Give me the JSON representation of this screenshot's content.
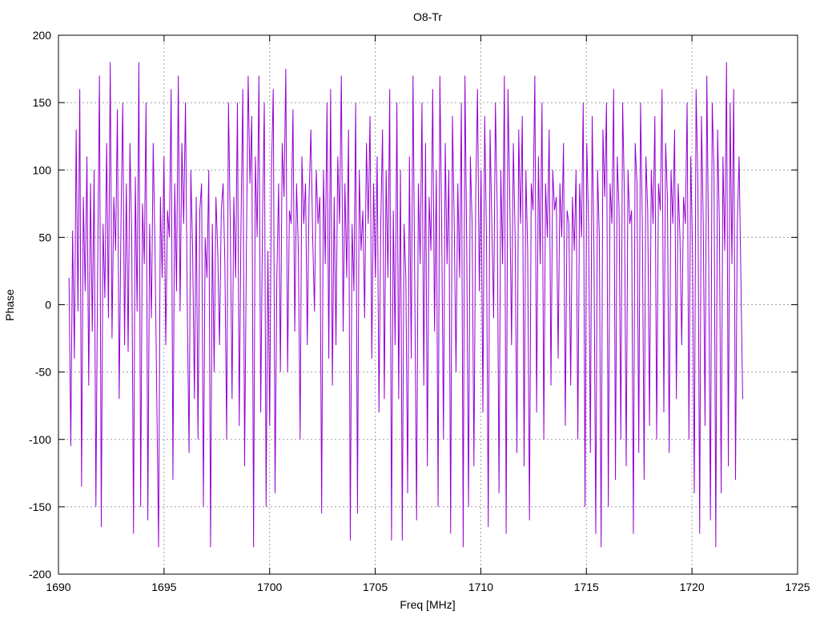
{
  "chart_data": {
    "type": "line",
    "title": "O8-Tr",
    "xlabel": "Freq [MHz]",
    "ylabel": "Phase",
    "xlim": [
      1690,
      1725
    ],
    "ylim": [
      -200,
      200
    ],
    "x_ticks": [
      1690,
      1695,
      1700,
      1705,
      1710,
      1715,
      1720,
      1725
    ],
    "y_ticks": [
      -200,
      -150,
      -100,
      -50,
      0,
      50,
      100,
      150,
      200
    ],
    "grid": true,
    "legend": "none",
    "series": [
      {
        "color": "#9400d3",
        "x_start": 1690.5,
        "x_end": 1722.4,
        "values": [
          20,
          -105,
          55,
          -40,
          130,
          -5,
          160,
          -135,
          80,
          10,
          110,
          -60,
          90,
          -20,
          100,
          -150,
          30,
          170,
          -165,
          60,
          5,
          120,
          -10,
          180,
          -25,
          80,
          40,
          145,
          -70,
          60,
          150,
          -30,
          90,
          -35,
          120,
          50,
          -170,
          95,
          -5,
          180,
          -150,
          75,
          30,
          150,
          -160,
          60,
          -10,
          120,
          40,
          -70,
          -180,
          80,
          20,
          110,
          -30,
          70,
          50,
          160,
          -130,
          90,
          10,
          170,
          -5,
          120,
          60,
          150,
          0,
          -110,
          100,
          40,
          -70,
          80,
          -100,
          70,
          90,
          -150,
          50,
          20,
          100,
          -180,
          60,
          -50,
          80,
          40,
          -30,
          70,
          90,
          30,
          -100,
          150,
          60,
          -70,
          80,
          20,
          150,
          -90,
          60,
          160,
          -120,
          40,
          170,
          90,
          140,
          -180,
          110,
          50,
          170,
          -80,
          60,
          150,
          -150,
          40,
          -90,
          100,
          160,
          -140,
          20,
          90,
          -50,
          120,
          80,
          175,
          -50,
          70,
          60,
          145,
          -20,
          90,
          40,
          -100,
          110,
          60,
          90,
          -30,
          80,
          130,
          50,
          -5,
          100,
          60,
          80,
          -155,
          100,
          30,
          150,
          -40,
          160,
          -60,
          80,
          -30,
          110,
          60,
          170,
          -20,
          90,
          20,
          130,
          -175,
          60,
          10,
          150,
          -155,
          100,
          40,
          70,
          -10,
          120,
          60,
          140,
          -40,
          90,
          20,
          110,
          -80,
          60,
          130,
          -70,
          100,
          20,
          160,
          -175,
          70,
          -30,
          150,
          -70,
          100,
          -175,
          60,
          20,
          -140,
          110,
          -40,
          170,
          10,
          -160,
          90,
          30,
          150,
          -60,
          120,
          -120,
          80,
          40,
          160,
          -20,
          100,
          -150,
          170,
          60,
          -100,
          120,
          30,
          100,
          -170,
          140,
          60,
          -50,
          90,
          20,
          150,
          -180,
          170,
          40,
          -150,
          110,
          60,
          -120,
          80,
          160,
          10,
          100,
          -80,
          140,
          50,
          -165,
          130,
          60,
          -10,
          150,
          70,
          -140,
          100,
          30,
          170,
          -170,
          160,
          80,
          -30,
          120,
          50,
          -110,
          130,
          60,
          140,
          -120,
          100,
          40,
          -160,
          90,
          70,
          170,
          -80,
          110,
          30,
          150,
          -100,
          90,
          50,
          130,
          -60,
          100,
          70,
          80,
          -40,
          90,
          50,
          120,
          -90,
          70,
          60,
          -60,
          80,
          40,
          100,
          -100,
          90,
          50,
          150,
          -150,
          120,
          60,
          -110,
          140,
          40,
          -170,
          100,
          50,
          -180,
          130,
          80,
          150,
          -150,
          90,
          60,
          160,
          -130,
          110,
          70,
          -100,
          150,
          80,
          -120,
          100,
          60,
          70,
          -170,
          120,
          90,
          -110,
          150,
          60,
          -130,
          110,
          70,
          -90,
          100,
          60,
          140,
          -100,
          90,
          70,
          160,
          -80,
          120,
          80,
          -110,
          100,
          60,
          130,
          -70,
          90,
          50,
          -30,
          80,
          60,
          150,
          -100,
          110,
          40,
          -140,
          160,
          90,
          -170,
          140,
          60,
          -90,
          170,
          40,
          -160,
          150,
          100,
          -180,
          130,
          60,
          -140,
          110,
          40,
          180,
          -120,
          150,
          30,
          160,
          -130,
          60,
          110,
          20,
          -70
        ]
      }
    ]
  }
}
